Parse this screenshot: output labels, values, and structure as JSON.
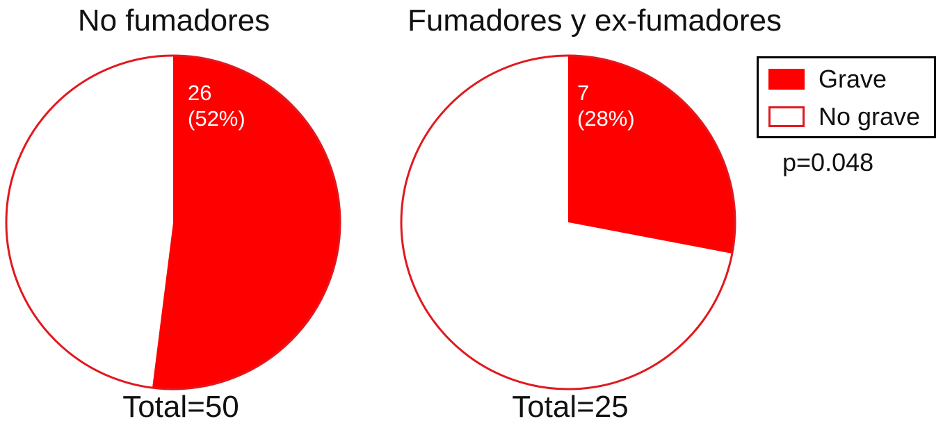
{
  "chart_data": [
    {
      "type": "pie",
      "title": "No fumadores",
      "total_label": "Total=50",
      "total": 50,
      "slices": [
        {
          "label": "Grave",
          "value": 26,
          "percent": 52,
          "color": "#ff0000",
          "value_text": "26",
          "percent_text": "(52%)"
        },
        {
          "label": "No grave",
          "value": 24,
          "percent": 48,
          "color": "#ffffff"
        }
      ],
      "outline_color": "#e0191f"
    },
    {
      "type": "pie",
      "title": "Fumadores y ex-fumadores",
      "total_label": "Total=25",
      "total": 25,
      "slices": [
        {
          "label": "Grave",
          "value": 7,
          "percent": 28,
          "color": "#ff0000",
          "value_text": "7",
          "percent_text": "(28%)"
        },
        {
          "label": "No grave",
          "value": 18,
          "percent": 72,
          "color": "#ffffff"
        }
      ],
      "outline_color": "#e0191f"
    }
  ],
  "legend": {
    "placement": "top-right",
    "items": [
      {
        "label": "Grave",
        "color": "#ff0000"
      },
      {
        "label": "No grave",
        "color": "#ffffff",
        "border": "#e0191f"
      }
    ]
  },
  "annotation": "p=0.048"
}
